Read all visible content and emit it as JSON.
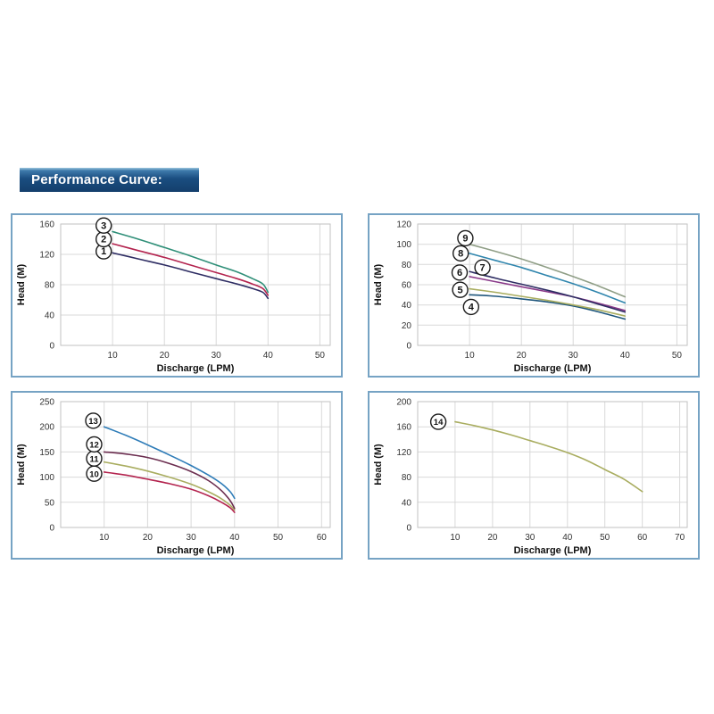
{
  "page": {
    "title": "Performance Curve:",
    "banner_bg": "#174e80",
    "panel_border_color": "#76a3c4",
    "grid_color": "#d9d9d9",
    "plot_border_color": "#c2c2c2",
    "tick_color": "#333333",
    "axis_label_color": "#111111",
    "badge_fill": "#ffffff",
    "badge_stroke": "#1a1a1a"
  },
  "chart_data": [
    {
      "type": "line",
      "position": "top-left",
      "xlabel": "Discharge (LPM)",
      "ylabel": "Head (M)",
      "xlim": [
        0,
        52
      ],
      "ylim": [
        0,
        160
      ],
      "x_ticks": [
        10,
        20,
        30,
        40,
        50
      ],
      "y_ticks": [
        0,
        40,
        80,
        120,
        160
      ],
      "grid": true,
      "legend": "circled curve numbers beside curve starts",
      "series": [
        {
          "name": "1",
          "color": "#2e2d63",
          "label_at": [
            8.3,
            124
          ],
          "points": [
            [
              10,
              122
            ],
            [
              15,
              114
            ],
            [
              20,
              106
            ],
            [
              25,
              97
            ],
            [
              30,
              88
            ],
            [
              34,
              81
            ],
            [
              37,
              75
            ],
            [
              39,
              70
            ],
            [
              40,
              62
            ]
          ]
        },
        {
          "name": "2",
          "color": "#b3234e",
          "label_at": [
            8.3,
            140
          ],
          "points": [
            [
              10,
              134
            ],
            [
              15,
              125
            ],
            [
              20,
              116
            ],
            [
              25,
              106
            ],
            [
              30,
              96
            ],
            [
              34,
              88
            ],
            [
              37,
              81
            ],
            [
              39,
              75
            ],
            [
              40,
              66
            ]
          ]
        },
        {
          "name": "3",
          "color": "#2f8f78",
          "label_at": [
            8.3,
            158
          ],
          "points": [
            [
              10,
              150
            ],
            [
              15,
              140
            ],
            [
              20,
              129
            ],
            [
              25,
              118
            ],
            [
              30,
              106
            ],
            [
              34,
              97
            ],
            [
              37,
              88
            ],
            [
              39,
              81
            ],
            [
              40,
              70
            ]
          ]
        }
      ]
    },
    {
      "type": "line",
      "position": "top-right",
      "xlabel": "Discharge (LPM)",
      "ylabel": "Head (M)",
      "xlim": [
        0,
        52
      ],
      "ylim": [
        0,
        120
      ],
      "x_ticks": [
        10,
        20,
        30,
        40,
        50
      ],
      "y_ticks": [
        0,
        20,
        40,
        60,
        80,
        100,
        120
      ],
      "grid": true,
      "legend": "circled curve numbers beside curve starts",
      "series": [
        {
          "name": "4",
          "color": "#1f567c",
          "label_at": [
            10.3,
            38
          ],
          "points": [
            [
              10,
              50
            ],
            [
              14,
              49
            ],
            [
              20,
              46
            ],
            [
              25,
              43
            ],
            [
              30,
              39
            ],
            [
              35,
              33
            ],
            [
              40,
              26
            ]
          ]
        },
        {
          "name": "5",
          "color": "#a9ad60",
          "label_at": [
            8.2,
            55
          ],
          "points": [
            [
              10,
              56
            ],
            [
              15,
              52.5
            ],
            [
              20,
              48.5
            ],
            [
              25,
              44.5
            ],
            [
              30,
              40
            ],
            [
              35,
              35
            ],
            [
              40,
              29
            ]
          ]
        },
        {
          "name": "6",
          "color": "#8a3a8a",
          "label_at": [
            8.1,
            72
          ],
          "points": [
            [
              10,
              68
            ],
            [
              15,
              63
            ],
            [
              20,
              58
            ],
            [
              25,
              53
            ],
            [
              30,
              48
            ],
            [
              35,
              41.5
            ],
            [
              40,
              34.5
            ]
          ]
        },
        {
          "name": "7",
          "color": "#2e2d63",
          "label_at": [
            12.5,
            77
          ],
          "points": [
            [
              10,
              73
            ],
            [
              15,
              66.5
            ],
            [
              20,
              60.5
            ],
            [
              25,
              54.5
            ],
            [
              30,
              48
            ],
            [
              35,
              40.5
            ],
            [
              40,
              33
            ]
          ]
        },
        {
          "name": "8",
          "color": "#2f85ad",
          "label_at": [
            8.3,
            91
          ],
          "points": [
            [
              10,
              91
            ],
            [
              15,
              84
            ],
            [
              20,
              77
            ],
            [
              25,
              69
            ],
            [
              30,
              61
            ],
            [
              35,
              52
            ],
            [
              40,
              42
            ]
          ]
        },
        {
          "name": "9",
          "color": "#8f9e86",
          "label_at": [
            9.2,
            106
          ],
          "points": [
            [
              10,
              100
            ],
            [
              15,
              93
            ],
            [
              20,
              85.5
            ],
            [
              25,
              77
            ],
            [
              30,
              68
            ],
            [
              35,
              58.5
            ],
            [
              40,
              48
            ]
          ]
        }
      ]
    },
    {
      "type": "line",
      "position": "bottom-left",
      "xlabel": "Discharge (LPM)",
      "ylabel": "Head (M)",
      "xlim": [
        0,
        62
      ],
      "ylim": [
        0,
        250
      ],
      "x_ticks": [
        10,
        20,
        30,
        40,
        50,
        60
      ],
      "y_ticks": [
        0,
        50,
        100,
        150,
        200,
        250
      ],
      "grid": true,
      "legend": "circled curve numbers beside curve starts",
      "series": [
        {
          "name": "10",
          "color": "#b3234e",
          "label_at": [
            7.7,
            107
          ],
          "points": [
            [
              10,
              110
            ],
            [
              15,
              104
            ],
            [
              20,
              96
            ],
            [
              25,
              87
            ],
            [
              30,
              76
            ],
            [
              34,
              63
            ],
            [
              37,
              50
            ],
            [
              39,
              39
            ],
            [
              40,
              30
            ]
          ]
        },
        {
          "name": "11",
          "color": "#a9ad60",
          "label_at": [
            7.7,
            137
          ],
          "points": [
            [
              10,
              130
            ],
            [
              15,
              122
            ],
            [
              20,
              112
            ],
            [
              25,
              100
            ],
            [
              30,
              86
            ],
            [
              34,
              71
            ],
            [
              37,
              57
            ],
            [
              39,
              44
            ],
            [
              40,
              35
            ]
          ]
        },
        {
          "name": "12",
          "color": "#6b2d4f",
          "label_at": [
            7.7,
            165
          ],
          "points": [
            [
              10,
              150
            ],
            [
              14,
              147
            ],
            [
              20,
              139
            ],
            [
              25,
              127
            ],
            [
              30,
              111
            ],
            [
              34,
              93
            ],
            [
              37,
              73
            ],
            [
              39,
              53
            ],
            [
              40,
              38
            ]
          ]
        },
        {
          "name": "13",
          "color": "#2e7cb8",
          "label_at": [
            7.5,
            212
          ],
          "points": [
            [
              10,
              200
            ],
            [
              15,
              183
            ],
            [
              20,
              164
            ],
            [
              25,
              144
            ],
            [
              30,
              123
            ],
            [
              34,
              104
            ],
            [
              37,
              87
            ],
            [
              39,
              71
            ],
            [
              40,
              58
            ]
          ]
        }
      ]
    },
    {
      "type": "line",
      "position": "bottom-right",
      "xlabel": "Discharge (LPM)",
      "ylabel": "Head (M)",
      "xlim": [
        0,
        72
      ],
      "ylim": [
        0,
        200
      ],
      "x_ticks": [
        10,
        20,
        30,
        40,
        50,
        60,
        70
      ],
      "y_ticks": [
        0,
        40,
        80,
        120,
        160,
        200
      ],
      "grid": true,
      "legend": "circled curve number beside curve start",
      "series": [
        {
          "name": "14",
          "color": "#a9ad60",
          "label_at": [
            5.5,
            168
          ],
          "points": [
            [
              10,
              168
            ],
            [
              15,
              162
            ],
            [
              20,
              155
            ],
            [
              25,
              147
            ],
            [
              30,
              138
            ],
            [
              35,
              129
            ],
            [
              40,
              119
            ],
            [
              45,
              107
            ],
            [
              50,
              92
            ],
            [
              55,
              77
            ],
            [
              60,
              57
            ]
          ]
        }
      ]
    }
  ]
}
